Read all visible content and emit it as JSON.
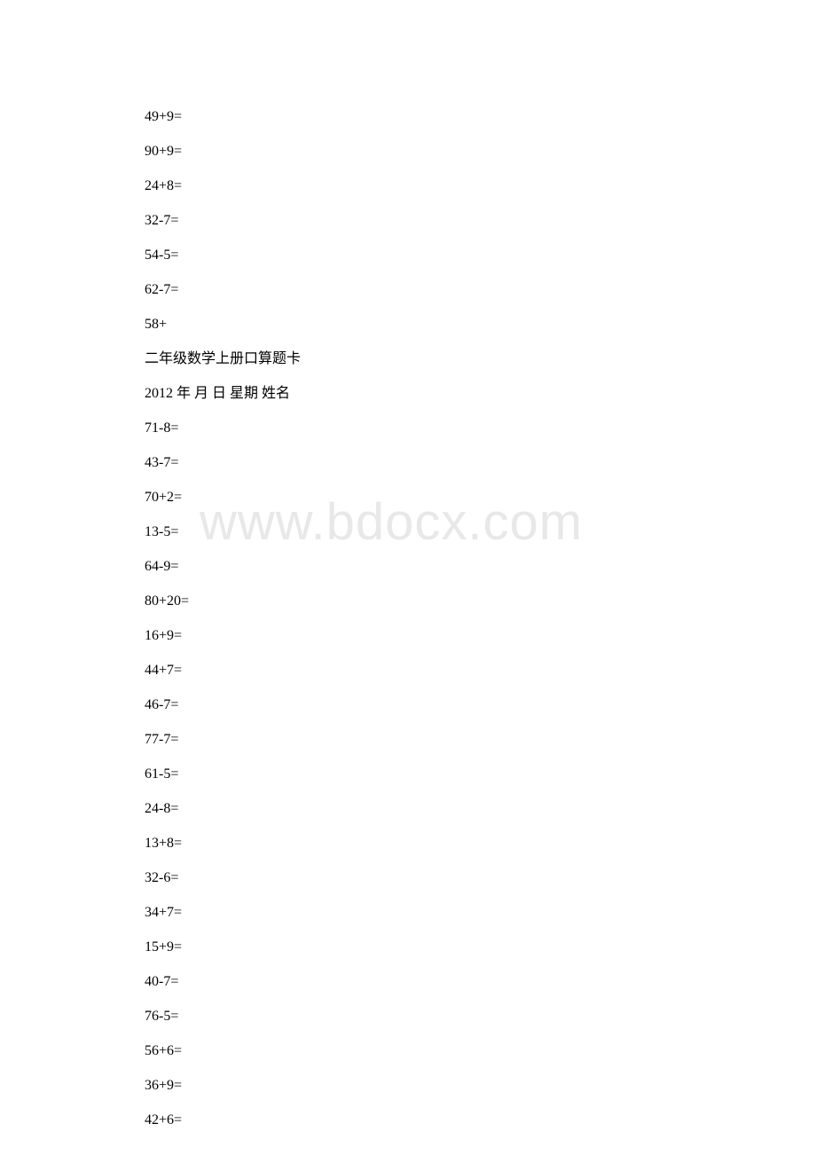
{
  "watermark": "www.bdocx.com",
  "lines": [
    "49+9=",
    "90+9=",
    "24+8=",
    "32-7=",
    "54-5=",
    "62-7=",
    "58+",
    "二年级数学上册口算题卡",
    "2012 年  月 日 星期  姓名",
    "71-8=",
    "43-7=",
    "70+2=",
    "13-5=",
    "64-9=",
    "80+20=",
    "16+9=",
    "44+7=",
    "46-7=",
    "77-7=",
    "61-5=",
    "24-8=",
    "13+8=",
    "32-6=",
    "34+7=",
    "15+9=",
    "40-7=",
    "76-5=",
    "56+6=",
    "36+9=",
    "42+6="
  ]
}
